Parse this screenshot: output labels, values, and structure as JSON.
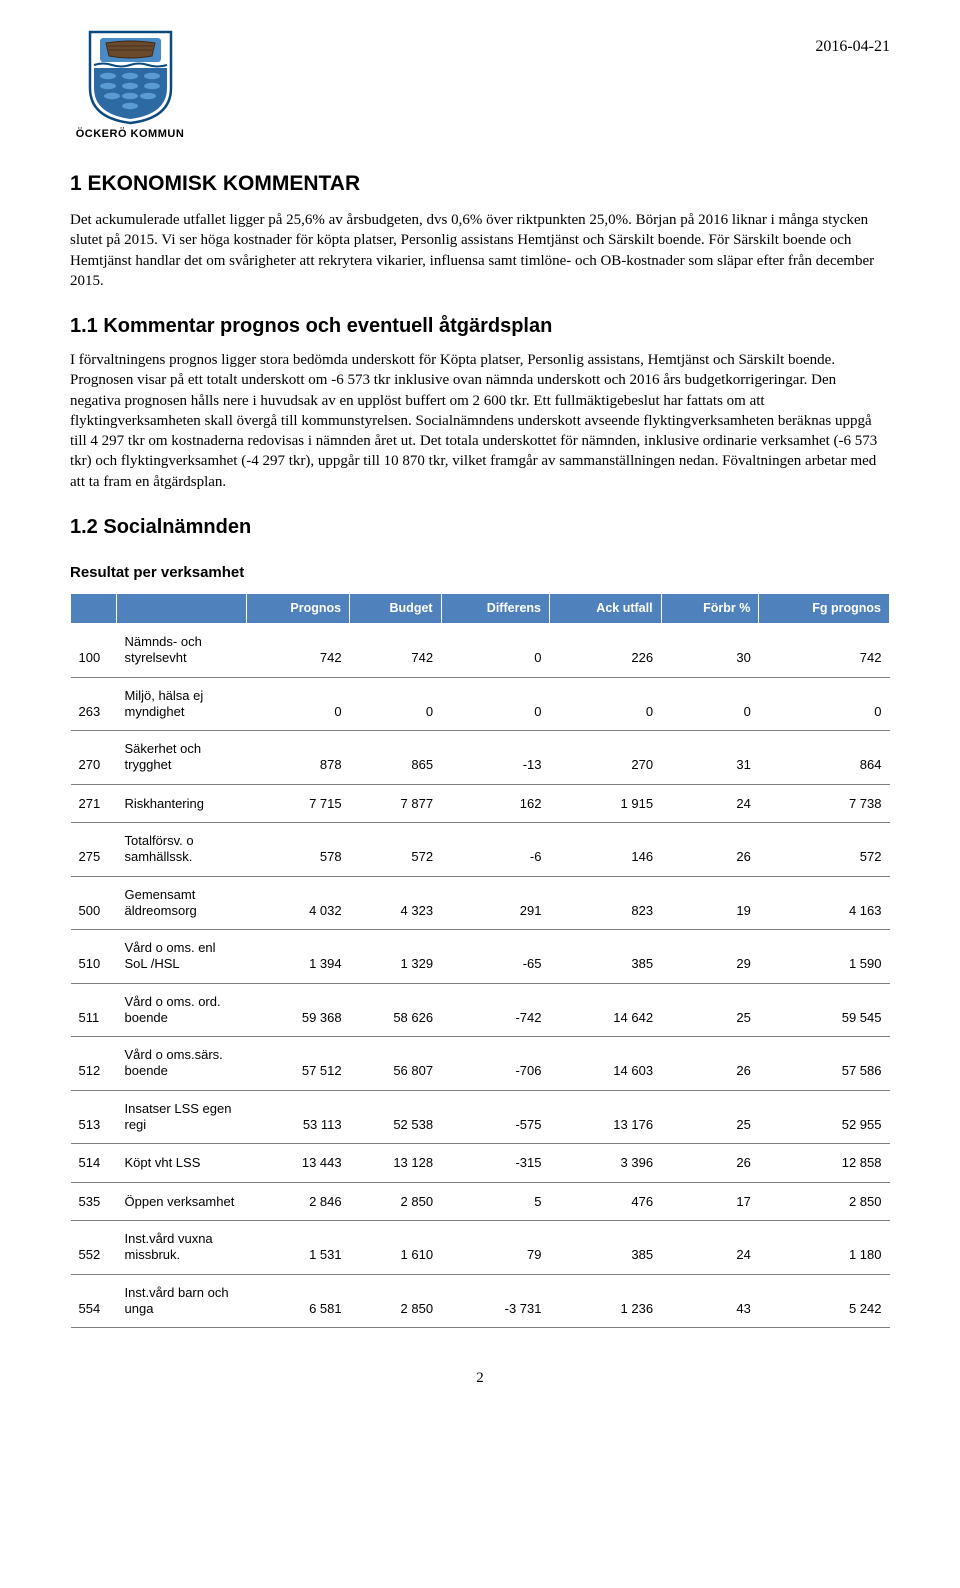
{
  "header": {
    "logo_text": "ÖCKERÖ KOMMUN",
    "date": "2016-04-21"
  },
  "section1": {
    "heading": "1  EKONOMISK KOMMENTAR",
    "body": "Det ackumulerade utfallet ligger på 25,6% av årsbudgeten, dvs 0,6% över riktpunkten 25,0%. Början på 2016 liknar i många stycken slutet på 2015. Vi ser höga kostnader för köpta platser, Personlig assistans Hemtjänst och Särskilt boende. För Särskilt boende och Hemtjänst handlar det om svårigheter att rekrytera vikarier, influensa samt timlöne- och OB-kostnader som släpar efter från december 2015."
  },
  "section1_1": {
    "heading": "1.1  Kommentar prognos och eventuell åtgärdsplan",
    "body": "I förvaltningens prognos ligger stora bedömda underskott för Köpta platser, Personlig assistans, Hemtjänst och Särskilt boende. Prognosen visar på ett totalt underskott om -6 573 tkr inklusive ovan nämnda underskott och 2016 års budgetkorrigeringar. Den negativa prognosen hålls nere i huvudsak av en upplöst buffert om 2 600 tkr. Ett fullmäktigebeslut har fattats om att flyktingverksamheten skall övergå till kommunstyrelsen. Socialnämndens underskott avseende flyktingverksamheten beräknas uppgå till 4 297 tkr om kostnaderna redovisas i nämnden året ut. Det totala underskottet för nämnden, inklusive ordinarie verksamhet (-6 573 tkr) och flyktingverksamhet (-4 297 tkr), uppgår till 10 870 tkr, vilket framgår av sammanställningen nedan. Fövaltningen arbetar med att ta fram en åtgärdsplan."
  },
  "section1_2": {
    "heading": "1.2  Socialnämnden",
    "subheading": "Resultat per verksamhet",
    "table": {
      "header_bg": "#4f81bd",
      "header_fg": "#ffffff",
      "columns": [
        "",
        "",
        "Prognos",
        "Budget",
        "Differens",
        "Ack utfall",
        "Förbr %",
        "Fg prognos"
      ],
      "rows": [
        {
          "code": "100",
          "name": "Nämnds- och styrelsevht",
          "prognos": "742",
          "budget": "742",
          "diff": "0",
          "ack": "226",
          "forbr": "30",
          "fg": "742"
        },
        {
          "code": "263",
          "name": "Miljö, hälsa ej myndighet",
          "prognos": "0",
          "budget": "0",
          "diff": "0",
          "ack": "0",
          "forbr": "0",
          "fg": "0"
        },
        {
          "code": "270",
          "name": "Säkerhet och trygghet",
          "prognos": "878",
          "budget": "865",
          "diff": "-13",
          "ack": "270",
          "forbr": "31",
          "fg": "864"
        },
        {
          "code": "271",
          "name": "Riskhantering",
          "prognos": "7 715",
          "budget": "7 877",
          "diff": "162",
          "ack": "1 915",
          "forbr": "24",
          "fg": "7 738"
        },
        {
          "code": "275",
          "name": "Totalförsv. o samhällssk.",
          "prognos": "578",
          "budget": "572",
          "diff": "-6",
          "ack": "146",
          "forbr": "26",
          "fg": "572"
        },
        {
          "code": "500",
          "name": "Gemensamt äldreomsorg",
          "prognos": "4 032",
          "budget": "4 323",
          "diff": "291",
          "ack": "823",
          "forbr": "19",
          "fg": "4 163"
        },
        {
          "code": "510",
          "name": "Vård o oms. enl SoL /HSL",
          "prognos": "1 394",
          "budget": "1 329",
          "diff": "-65",
          "ack": "385",
          "forbr": "29",
          "fg": "1 590"
        },
        {
          "code": "511",
          "name": "Vård o oms. ord. boende",
          "prognos": "59 368",
          "budget": "58 626",
          "diff": "-742",
          "ack": "14 642",
          "forbr": "25",
          "fg": "59 545"
        },
        {
          "code": "512",
          "name": "Vård o oms.särs. boende",
          "prognos": "57 512",
          "budget": "56 807",
          "diff": "-706",
          "ack": "14 603",
          "forbr": "26",
          "fg": "57 586"
        },
        {
          "code": "513",
          "name": "Insatser LSS egen regi",
          "prognos": "53 113",
          "budget": "52 538",
          "diff": "-575",
          "ack": "13 176",
          "forbr": "25",
          "fg": "52 955"
        },
        {
          "code": "514",
          "name": "Köpt vht LSS",
          "prognos": "13 443",
          "budget": "13 128",
          "diff": "-315",
          "ack": "3 396",
          "forbr": "26",
          "fg": "12 858"
        },
        {
          "code": "535",
          "name": "Öppen verksamhet",
          "prognos": "2 846",
          "budget": "2 850",
          "diff": "5",
          "ack": "476",
          "forbr": "17",
          "fg": "2 850"
        },
        {
          "code": "552",
          "name": "Inst.vård vuxna missbruk.",
          "prognos": "1 531",
          "budget": "1 610",
          "diff": "79",
          "ack": "385",
          "forbr": "24",
          "fg": "1 180"
        },
        {
          "code": "554",
          "name": "Inst.vård barn och unga",
          "prognos": "6 581",
          "budget": "2 850",
          "diff": "-3 731",
          "ack": "1 236",
          "forbr": "43",
          "fg": "5 242"
        }
      ]
    }
  },
  "page_number": "2"
}
